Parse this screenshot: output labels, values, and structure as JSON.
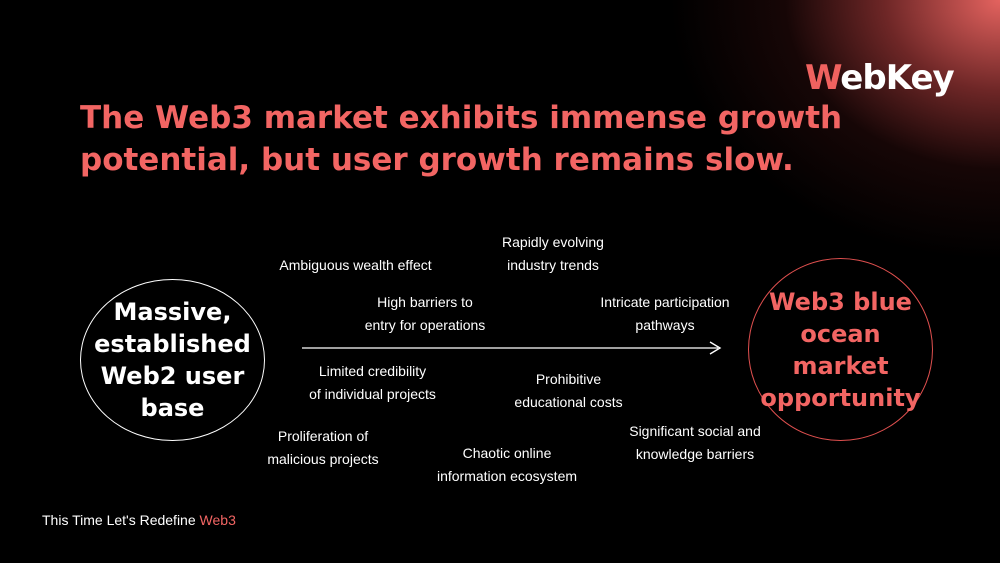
{
  "logo": {
    "mark": "W",
    "text": "ebKey"
  },
  "title": "The Web3 market exhibits immense growth potential, but user growth remains slow.",
  "left_node": "Massive,\nestablished\nWeb2 user\nbase",
  "right_node": "Web3 blue\nocean market\nopportunity",
  "barriers": [
    "Ambiguous wealth effect",
    "Rapidly evolving\nindustry trends",
    "High barriers to\nentry for operations",
    "Intricate participation\npathways",
    "Limited credibility\nof individual projects",
    "Prohibitive\neducational costs",
    "Proliferation of\nmalicious projects",
    "Chaotic online\ninformation ecosystem",
    "Significant social and\nknowledge barriers"
  ],
  "footer": {
    "text": "This Time Let's Redefine ",
    "accent": "Web3"
  },
  "colors": {
    "accent": "#f26563",
    "background": "#000000",
    "text": "#ffffff"
  }
}
